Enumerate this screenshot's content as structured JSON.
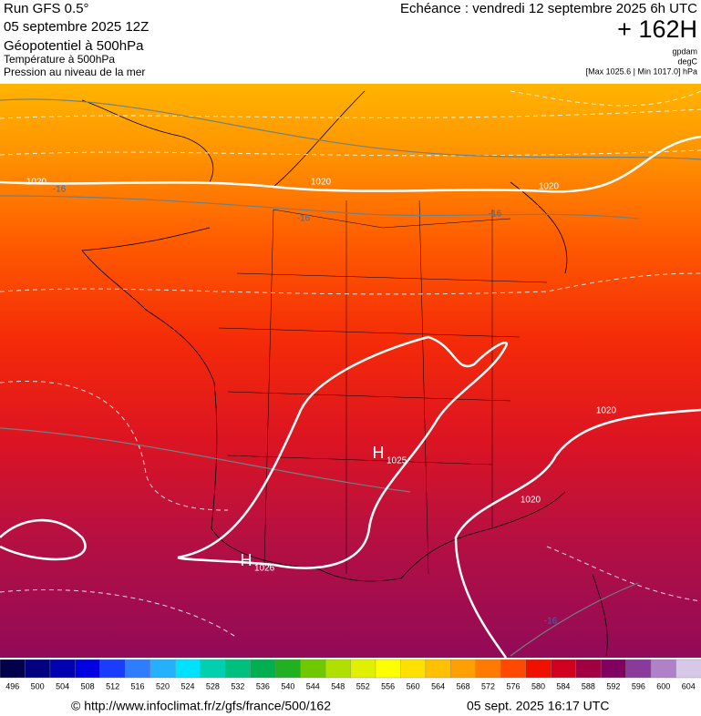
{
  "header": {
    "run": "Run GFS 0.5°",
    "date": "05 septembre 2025 12Z",
    "field1": "Géopotentiel à 500hPa",
    "field2": "Température à 500hPa",
    "field3": "Pression au niveau de la mer",
    "valid": "Echéance : vendredi 12 septembre 2025 6h UTC",
    "lead": "+ 162H",
    "unit1": "gpdam",
    "unit2": "degC",
    "range": "[Max 1025.6 | Min 1017.0] hPa"
  },
  "map": {
    "isobar_labels": [
      1020,
      1020,
      1020,
      1020,
      1020
    ],
    "isotherm_labels": [
      -16,
      -16,
      -16,
      -16
    ],
    "highs": [
      {
        "symbol": "H",
        "value": 1025
      },
      {
        "symbol": "H",
        "value": 1026
      }
    ]
  },
  "legend": {
    "values": [
      496,
      500,
      504,
      508,
      512,
      516,
      520,
      524,
      528,
      532,
      536,
      540,
      544,
      548,
      552,
      556,
      560,
      564,
      568,
      572,
      576,
      580,
      584,
      588,
      592,
      596,
      600,
      604
    ],
    "colors": [
      "#00004a",
      "#000080",
      "#0000b0",
      "#0000e0",
      "#1a3cff",
      "#2f7dff",
      "#22b0ff",
      "#00e0ff",
      "#00d0b0",
      "#00c080",
      "#00b050",
      "#20b020",
      "#70c800",
      "#b0e000",
      "#e0f000",
      "#ffff00",
      "#ffe000",
      "#ffc000",
      "#ffa000",
      "#ff7a00",
      "#ff4800",
      "#f01000",
      "#d00020",
      "#a00040",
      "#800060",
      "#8a3a9a",
      "#b080c8",
      "#d8c8e8"
    ]
  },
  "footer": {
    "url": "© http://www.infoclimat.fr/z/gfs/france/500/162",
    "time": "05 sept. 2025 16:17 UTC"
  }
}
